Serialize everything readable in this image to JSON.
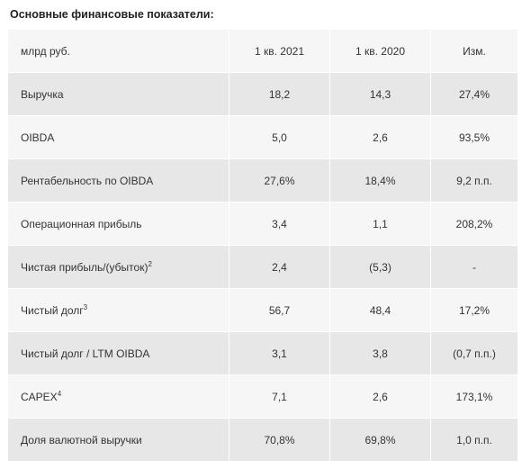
{
  "title": "Основные финансовые показатели:",
  "table": {
    "header": [
      "млрд руб.",
      "1 кв. 2021",
      "1 кв. 2020",
      "Изм."
    ],
    "rows": [
      {
        "label": "Выручка",
        "cells": [
          "18,2",
          "14,3",
          "27,4%"
        ]
      },
      {
        "label": "OIBDA",
        "cells": [
          "5,0",
          "2,6",
          "93,5%"
        ]
      },
      {
        "label": "Рентабельность по OIBDA",
        "cells": [
          "27,6%",
          "18,4%",
          "9,2 п.п."
        ]
      },
      {
        "label": "Операционная прибыль",
        "cells": [
          "3,4",
          "1,1",
          "208,2%"
        ]
      },
      {
        "label": "Чистая прибыль/(убыток)",
        "sup": "2",
        "cells": [
          "2,4",
          "(5,3)",
          "-"
        ]
      },
      {
        "label": "Чистый долг",
        "sup": "3",
        "cells": [
          "56,7",
          "48,4",
          "17,2%"
        ]
      },
      {
        "label": "Чистый долг / LTM OIBDA",
        "cells": [
          "3,1",
          "3,8",
          "(0,7 п.п.)"
        ]
      },
      {
        "label": "CAPEX",
        "sup": "4",
        "cells": [
          "7,1",
          "2,6",
          "173,1%"
        ]
      },
      {
        "label": "Доля валютной выручки",
        "cells": [
          "70,8%",
          "69,8%",
          "1,0 п.п."
        ]
      }
    ]
  }
}
